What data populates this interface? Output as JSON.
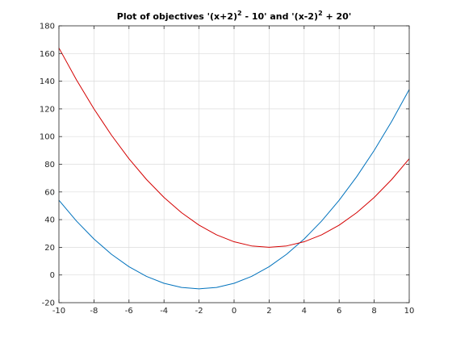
{
  "chart_data": {
    "type": "line",
    "title": {
      "part1": "Plot of objectives '(x+2)",
      "sup1": "2",
      "part2": " - 10' and '(x-2)",
      "sup2": "2",
      "part3": " + 20'"
    },
    "xlim": [
      -10,
      10
    ],
    "ylim": [
      -20,
      180
    ],
    "xticks": [
      "-10",
      "-8",
      "-6",
      "-4",
      "-2",
      "0",
      "2",
      "4",
      "6",
      "8",
      "10"
    ],
    "yticks": [
      "-20",
      "0",
      "20",
      "40",
      "60",
      "80",
      "100",
      "120",
      "140",
      "160",
      "180"
    ],
    "grid": true,
    "series": [
      {
        "color": "#0072bd",
        "x": [
          -10,
          -9,
          -8,
          -7,
          -6,
          -5,
          -4,
          -3,
          -2,
          -1,
          0,
          1,
          2,
          3,
          4,
          5,
          6,
          7,
          8,
          9,
          10
        ],
        "y": [
          54,
          39,
          26,
          15,
          6,
          -1,
          -6,
          -9,
          -10,
          -9,
          -6,
          -1,
          6,
          15,
          26,
          39,
          54,
          71,
          90,
          111,
          134
        ]
      },
      {
        "color": "#d40000",
        "x": [
          -10,
          -9,
          -8,
          -7,
          -6,
          -5,
          -4,
          -3,
          -2,
          -1,
          0,
          1,
          2,
          3,
          4,
          5,
          6,
          7,
          8,
          9,
          10
        ],
        "y": [
          164,
          141,
          120,
          101,
          84,
          69,
          56,
          45,
          36,
          29,
          24,
          21,
          20,
          21,
          24,
          29,
          36,
          45,
          56,
          69,
          84
        ]
      }
    ]
  }
}
